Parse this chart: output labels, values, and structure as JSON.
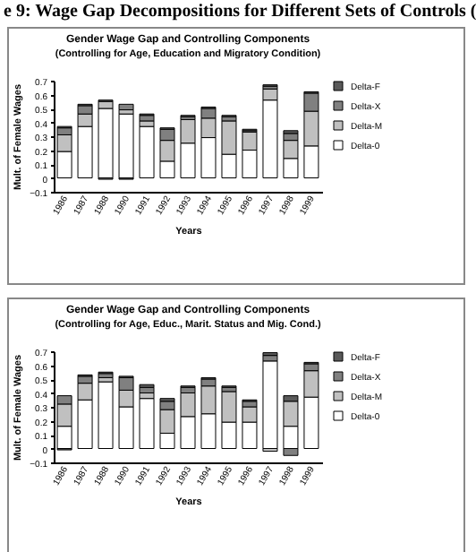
{
  "chart_data": [
    {
      "type": "bar",
      "title": "Gender Wage Gap and Controlling Components",
      "subtitle": "(Controlling for Age, Education and Migratory Condition)",
      "annotations": [
        "e 9: Wage Gap Decompositions for Different Sets of Controls ("
      ],
      "xlabel": "Years",
      "ylabel": "Mult. of Female Wages",
      "categories": [
        "1986",
        "1987",
        "1988",
        "1990",
        "1991",
        "1992",
        "1993",
        "1994",
        "1995",
        "1996",
        "1997",
        "1998",
        "1999"
      ],
      "stacked": true,
      "legend": "right",
      "ylim": [
        -0.1,
        0.7
      ],
      "yticks": [
        -0.1,
        0,
        0.1,
        0.2,
        0.3,
        0.4,
        0.5,
        0.6,
        0.7
      ],
      "series": [
        {
          "name": "Delta-0",
          "color": "#ffffff",
          "values": [
            0.19,
            0.37,
            0.5,
            0.46,
            0.37,
            0.12,
            0.25,
            0.29,
            0.17,
            0.2,
            0.56,
            0.14,
            0.23
          ]
        },
        {
          "name": "Delta-M",
          "color": "#c0c0c0",
          "values": [
            0.12,
            0.09,
            0.05,
            0.03,
            0.04,
            0.15,
            0.17,
            0.14,
            0.24,
            0.13,
            0.08,
            0.13,
            0.25
          ]
        },
        {
          "name": "Delta-X",
          "color": "#808080",
          "values": [
            0.05,
            0.06,
            -0.01,
            0.04,
            0.04,
            0.08,
            0.02,
            0.07,
            0.03,
            0.01,
            0.02,
            0.05,
            0.13
          ]
        },
        {
          "name": "Delta-F",
          "color": "#5a5a5a",
          "values": [
            0.01,
            0.01,
            0.01,
            -0.01,
            0.01,
            0.01,
            0.01,
            0.01,
            0.01,
            0.01,
            0.01,
            0.02,
            0.01
          ]
        }
      ]
    },
    {
      "type": "bar",
      "title": "Gender Wage Gap and Controlling Components",
      "subtitle": "(Controlling for Age, Educ., Marit. Status and Mig. Cond.)",
      "xlabel": "Years",
      "ylabel": "Mult. of Female Wages",
      "categories": [
        "1986",
        "1987",
        "1988",
        "1990",
        "1991",
        "1992",
        "1993",
        "1994",
        "1995",
        "1996",
        "1997",
        "1998",
        "1999"
      ],
      "stacked": true,
      "legend": "right",
      "ylim": [
        -0.1,
        0.7
      ],
      "yticks": [
        -0.1,
        0,
        0.1,
        0.2,
        0.3,
        0.4,
        0.5,
        0.6,
        0.7
      ],
      "series": [
        {
          "name": "Delta-0",
          "color": "#ffffff",
          "values": [
            0.16,
            0.35,
            0.48,
            0.3,
            0.36,
            0.11,
            0.23,
            0.25,
            0.19,
            0.19,
            0.63,
            0.16,
            0.37
          ]
        },
        {
          "name": "Delta-M",
          "color": "#c0c0c0",
          "values": [
            0.16,
            0.12,
            0.03,
            0.12,
            0.04,
            0.17,
            0.17,
            0.2,
            0.22,
            0.11,
            -0.02,
            0.18,
            0.19
          ]
        },
        {
          "name": "Delta-X",
          "color": "#808080",
          "values": [
            0.06,
            0.05,
            0.03,
            0.09,
            0.04,
            0.06,
            0.04,
            0.05,
            0.03,
            0.04,
            0.04,
            -0.05,
            0.05
          ]
        },
        {
          "name": "Delta-F",
          "color": "#5a5a5a",
          "values": [
            -0.01,
            0.01,
            0.01,
            0.01,
            0.02,
            0.02,
            0.01,
            0.01,
            0.01,
            0.01,
            0.02,
            0.04,
            0.01
          ]
        }
      ]
    }
  ]
}
